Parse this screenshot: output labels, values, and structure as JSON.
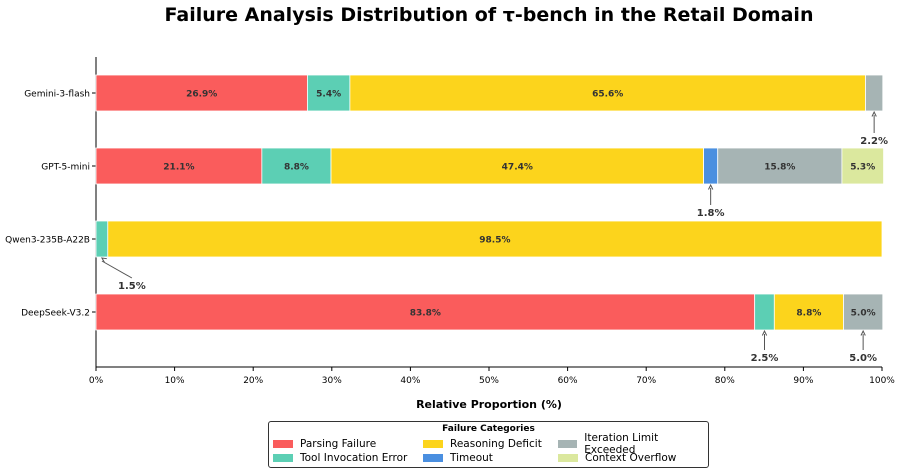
{
  "chart_data": {
    "type": "bar",
    "orientation": "horizontal",
    "stacked": true,
    "title": "Failure Analysis Distribution of τ-bench in the Retail Domain",
    "xlabel": "Relative Proportion (%)",
    "xlim": [
      0,
      100
    ],
    "x_ticks": [
      "0%",
      "10%",
      "20%",
      "30%",
      "40%",
      "50%",
      "60%",
      "70%",
      "80%",
      "90%",
      "100%"
    ],
    "categories": [
      "Gemini-3-flash",
      "GPT-5-mini",
      "Qwen3-235B-A22B",
      "DeepSeek-V3.2"
    ],
    "series": [
      {
        "name": "Parsing Failure",
        "color": "#fa5c5c",
        "values": [
          26.9,
          21.1,
          0,
          83.8
        ]
      },
      {
        "name": "Tool Invocation Error",
        "color": "#5ccfb4",
        "values": [
          5.4,
          8.8,
          1.5,
          2.5
        ]
      },
      {
        "name": "Reasoning Deficit",
        "color": "#fcd41c",
        "values": [
          65.6,
          47.4,
          98.5,
          8.8
        ]
      },
      {
        "name": "Timeout",
        "color": "#4a8fe0",
        "values": [
          0,
          1.8,
          0,
          0
        ]
      },
      {
        "name": "Iteration Limit Exceeded",
        "color": "#a6b4b4",
        "values": [
          2.2,
          15.8,
          0,
          5.0
        ]
      },
      {
        "name": "Context Overflow",
        "color": "#dbe89e",
        "values": [
          0,
          5.3,
          0,
          0
        ]
      }
    ],
    "data_labels": [
      [
        "26.9%",
        "5.4%",
        "",
        "65.6%",
        "",
        "",
        "",
        ""
      ],
      [
        "21.1%",
        "8.8%",
        "47.4%",
        "",
        "15.8%",
        "5.3%"
      ],
      [
        "98.5%"
      ],
      [
        "83.8%",
        "8.8%"
      ]
    ],
    "callouts": [
      {
        "category": "Gemini-3-flash",
        "series": "Iteration Limit Exceeded",
        "text": "2.2%"
      },
      {
        "category": "GPT-5-mini",
        "series": "Timeout",
        "text": "1.8%"
      },
      {
        "category": "Qwen3-235B-A22B",
        "series": "Tool Invocation Error",
        "text": "1.5%"
      },
      {
        "category": "DeepSeek-V3.2",
        "series": "Tool Invocation Error",
        "text": "2.5%"
      },
      {
        "category": "DeepSeek-V3.2",
        "series": "Iteration Limit Exceeded",
        "text": "5.0%"
      }
    ],
    "grid": false,
    "legend": {
      "title": "Failure Categories",
      "placement": "bottom-center",
      "columns": 3
    }
  }
}
